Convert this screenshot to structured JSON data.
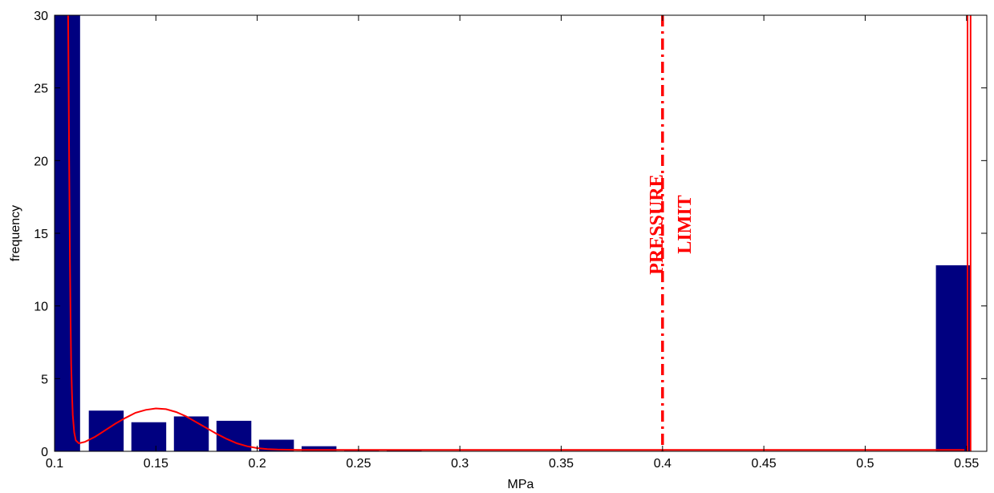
{
  "chart_data": {
    "type": "bar",
    "title": "",
    "xlabel": "MPa",
    "ylabel": "frequency",
    "xlim": [
      0.1,
      0.56
    ],
    "ylim": [
      0,
      30
    ],
    "xticks": [
      0.1,
      0.15,
      0.2,
      0.25,
      0.3,
      0.35,
      0.4,
      0.45,
      0.5,
      0.55
    ],
    "xtick_labels": [
      "0.1",
      "0.15",
      "0.2",
      "0.25",
      "0.3",
      "0.35",
      "0.4",
      "0.45",
      "0.5",
      "0.55"
    ],
    "yticks": [
      0,
      5,
      10,
      15,
      20,
      25,
      30
    ],
    "ytick_labels": [
      "0",
      "5",
      "10",
      "15",
      "20",
      "25",
      "30"
    ],
    "grid": false,
    "bar_color": "#000080",
    "curve_color": "#ff0000",
    "bars": [
      {
        "x": 0.104,
        "value": 30
      },
      {
        "x": 0.1255,
        "value": 2.8
      },
      {
        "x": 0.1465,
        "value": 2.0
      },
      {
        "x": 0.1675,
        "value": 2.4
      },
      {
        "x": 0.1885,
        "value": 2.1
      },
      {
        "x": 0.2095,
        "value": 0.8
      },
      {
        "x": 0.2305,
        "value": 0.35
      },
      {
        "x": 0.2515,
        "value": 0.05
      },
      {
        "x": 0.2725,
        "value": 0.12
      },
      {
        "x": 0.5435,
        "value": 12.8
      }
    ],
    "bar_width": 0.0172,
    "fit_curve": {
      "x": [
        0.1067,
        0.1072,
        0.1076,
        0.1079,
        0.1082,
        0.1086,
        0.109,
        0.1097,
        0.1105,
        0.112,
        0.115,
        0.12,
        0.125,
        0.13,
        0.135,
        0.14,
        0.145,
        0.15,
        0.155,
        0.16,
        0.165,
        0.17,
        0.175,
        0.18,
        0.185,
        0.19,
        0.195,
        0.2,
        0.205,
        0.21,
        0.22,
        0.23,
        0.25,
        0.3,
        0.35,
        0.4,
        0.45,
        0.5,
        0.53,
        0.545,
        0.549
      ],
      "y": [
        30,
        20,
        13,
        9,
        6,
        4,
        2.5,
        1.3,
        0.75,
        0.55,
        0.65,
        1.0,
        1.45,
        1.9,
        2.3,
        2.65,
        2.85,
        2.95,
        2.9,
        2.7,
        2.4,
        2.0,
        1.6,
        1.2,
        0.85,
        0.55,
        0.35,
        0.22,
        0.15,
        0.12,
        0.1,
        0.1,
        0.1,
        0.1,
        0.1,
        0.1,
        0.1,
        0.1,
        0.1,
        0.1,
        0.1
      ]
    },
    "right_vertical_lines_x": [
      0.5505,
      0.552
    ],
    "pressure_limit": {
      "x": 0.4,
      "style": "dash-dot",
      "labels": [
        "PRESSURE",
        "LIMIT"
      ]
    }
  }
}
